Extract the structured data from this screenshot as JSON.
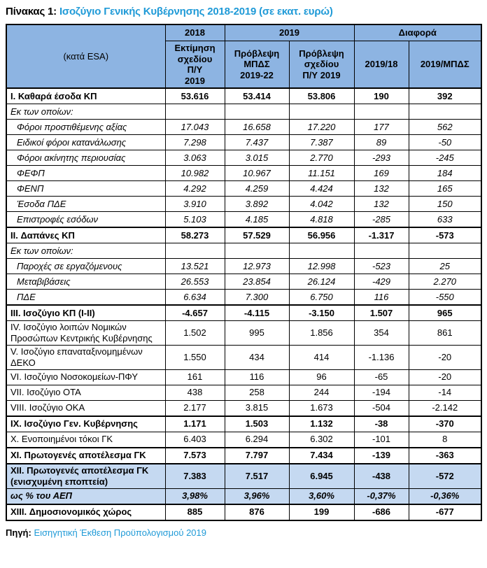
{
  "title": {
    "prefix": "Πίνακας 1:",
    "text": "Ισοζύγιο Γενικής Κυβέρνησης 2018-2019 (σε εκατ. ευρώ)"
  },
  "colors": {
    "header_bg": "#8DB4E2",
    "highlight_bg": "#C5D9F1",
    "accent_blue": "#1F9AD7",
    "border": "#000000"
  },
  "header": {
    "esa": "(κατά ESA)",
    "groups": [
      "2018",
      "2019",
      "Διαφορά"
    ],
    "columns": [
      "Εκτίμηση\nσχεδίου\nΠ/Υ\n2019",
      "Πρόβλεψη\nΜΠΔΣ\n2019-22",
      "Πρόβλεψη\nσχεδίου\nΠ/Υ 2019",
      "2019/18",
      "2019/ΜΠΔΣ"
    ]
  },
  "rows": [
    {
      "label": "I. Καθαρά έσοδα ΚΠ",
      "style": "section",
      "values": [
        "53.616",
        "53.414",
        "53.806",
        "190",
        "392"
      ]
    },
    {
      "label": "Εκ των οποίων:",
      "style": "subhead",
      "values": [
        "",
        "",
        "",
        "",
        ""
      ]
    },
    {
      "label": "Φόροι προστιθέμενης αξίας",
      "style": "sub",
      "values": [
        "17.043",
        "16.658",
        "17.220",
        "177",
        "562"
      ]
    },
    {
      "label": "Ειδικοί φόροι κατανάλωσης",
      "style": "sub",
      "values": [
        "7.298",
        "7.437",
        "7.387",
        "89",
        "-50"
      ]
    },
    {
      "label": "Φόροι ακίνητης περιουσίας",
      "style": "sub",
      "values": [
        "3.063",
        "3.015",
        "2.770",
        "-293",
        "-245"
      ]
    },
    {
      "label": "ΦΕΦΠ",
      "style": "sub",
      "values": [
        "10.982",
        "10.967",
        "11.151",
        "169",
        "184"
      ]
    },
    {
      "label": "ΦΕΝΠ",
      "style": "sub",
      "values": [
        "4.292",
        "4.259",
        "4.424",
        "132",
        "165"
      ]
    },
    {
      "label": "Έσοδα ΠΔΕ",
      "style": "sub",
      "values": [
        "3.910",
        "3.892",
        "4.042",
        "132",
        "150"
      ]
    },
    {
      "label": "Επιστροφές εσόδων",
      "style": "sub",
      "values": [
        "5.103",
        "4.185",
        "4.818",
        "-285",
        "633"
      ]
    },
    {
      "label": "II. Δαπάνες ΚΠ",
      "style": "section",
      "values": [
        "58.273",
        "57.529",
        "56.956",
        "-1.317",
        "-573"
      ]
    },
    {
      "label": "Εκ των οποίων:",
      "style": "subhead",
      "values": [
        "",
        "",
        "",
        "",
        ""
      ]
    },
    {
      "label": "Παροχές σε εργαζόμενους",
      "style": "sub",
      "values": [
        "13.521",
        "12.973",
        "12.998",
        "-523",
        "25"
      ]
    },
    {
      "label": "Μεταβιβάσεις",
      "style": "sub",
      "values": [
        "26.553",
        "23.854",
        "26.124",
        "-429",
        "2.270"
      ]
    },
    {
      "label": "ΠΔΕ",
      "style": "sub",
      "values": [
        "6.634",
        "7.300",
        "6.750",
        "116",
        "-550"
      ]
    },
    {
      "label": "III. Ισοζύγιο ΚΠ (I-II)",
      "style": "section",
      "values": [
        "-4.657",
        "-4.115",
        "-3.150",
        "1.507",
        "965"
      ]
    },
    {
      "label": "IV. Ισοζύγιο λοιπών Νομικών Προσώπων Κεντρικής Κυβέρνησης",
      "style": "plain",
      "values": [
        "1.502",
        "995",
        "1.856",
        "354",
        "861"
      ]
    },
    {
      "label": "V. Ισοζύγιο επαναταξινομημένων ΔΕΚΟ",
      "style": "plain",
      "values": [
        "1.550",
        "434",
        "414",
        "-1.136",
        "-20"
      ]
    },
    {
      "label": "VI. Ισοζύγιο Νοσοκομείων-ΠΦΥ",
      "style": "plain",
      "values": [
        "161",
        "116",
        "96",
        "-65",
        "-20"
      ]
    },
    {
      "label": "VII. Ισοζύγιο ΟΤΑ",
      "style": "plain",
      "values": [
        "438",
        "258",
        "244",
        "-194",
        "-14"
      ]
    },
    {
      "label": "VIII. Ισοζύγιο ΟΚΑ",
      "style": "plain",
      "values": [
        "2.177",
        "3.815",
        "1.673",
        "-504",
        "-2.142"
      ]
    },
    {
      "label": "IX. Ισοζύγιο Γεν. Κυβέρνησης",
      "style": "section",
      "values": [
        "1.171",
        "1.503",
        "1.132",
        "-38",
        "-370"
      ]
    },
    {
      "label": "X. Ενοποιημένοι τόκοι ΓΚ",
      "style": "plain",
      "values": [
        "6.403",
        "6.294",
        "6.302",
        "-101",
        "8"
      ]
    },
    {
      "label": "XI. Πρωτογενές αποτέλεσμα ΓΚ",
      "style": "section",
      "values": [
        "7.573",
        "7.797",
        "7.434",
        "-139",
        "-363"
      ]
    },
    {
      "label": "XII. Πρωτογενές αποτέλεσμα ΓΚ (ενισχυμένη εποπτεία)",
      "style": "highlight",
      "values": [
        "7.383",
        "7.517",
        "6.945",
        "-438",
        "-572"
      ]
    },
    {
      "label": "ως % του ΑΕΠ",
      "style": "pct",
      "values": [
        "3,98%",
        "3,96%",
        "3,60%",
        "-0,37%",
        "-0,36%"
      ]
    },
    {
      "label": "XIII. Δημοσιονομικός χώρος",
      "style": "section",
      "values": [
        "885",
        "876",
        "199",
        "-686",
        "-677"
      ]
    }
  ],
  "footer": {
    "prefix": "Πηγή:",
    "text": "Εισηγητική Έκθεση Προϋπολογισμού 2019"
  },
  "chart_data": {
    "type": "table",
    "title": "Ισοζύγιο Γενικής Κυβέρνησης 2018-2019 (σε εκατ. ευρώ)",
    "columns": [
      "Εκτίμηση σχεδίου Π/Υ 2019 (2018)",
      "Πρόβλεψη ΜΠΔΣ 2019-22 (2019)",
      "Πρόβλεψη σχεδίου Π/Υ 2019 (2019)",
      "Διαφορά 2019/18",
      "Διαφορά 2019/ΜΠΔΣ"
    ]
  }
}
